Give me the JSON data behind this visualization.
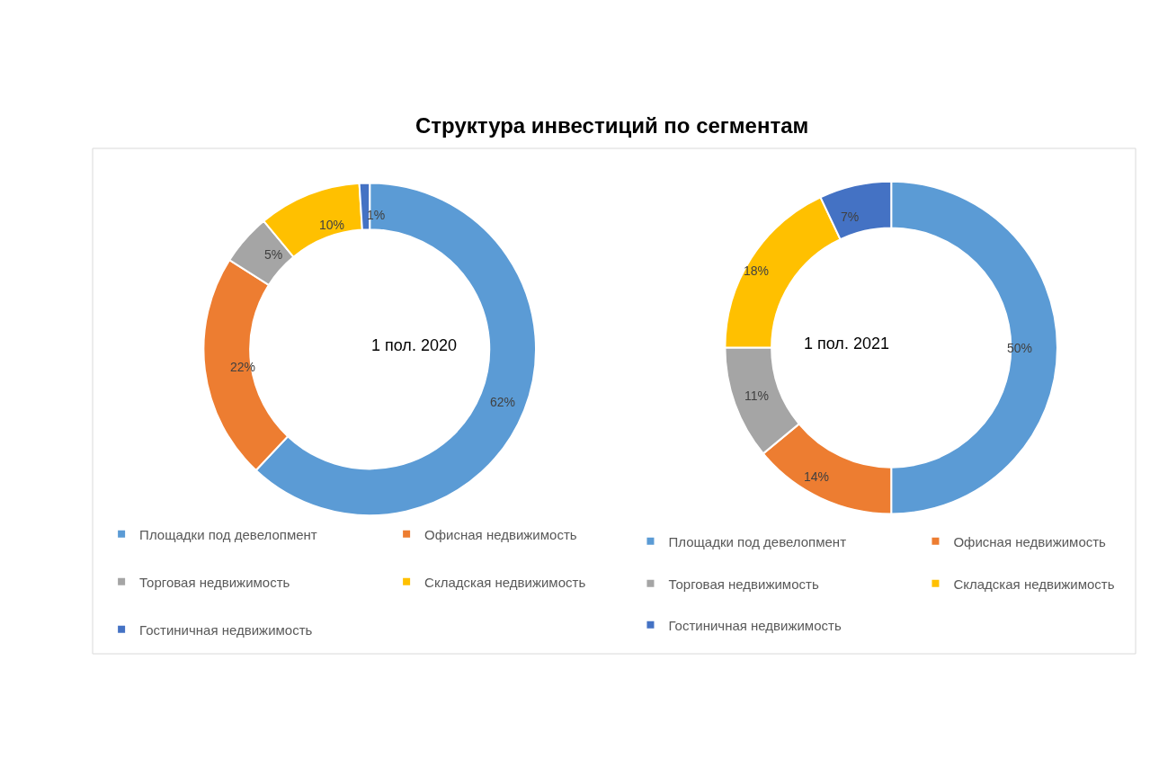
{
  "chart_data": [
    {
      "type": "donut",
      "title": "Структура инвестиций по сегментам",
      "subtitle": "1 пол. 2020",
      "categories": [
        "Площадки под девелопмент",
        "Офисная недвижимость",
        "Торговая недвижимость",
        "Складская недвижимость",
        "Гостиничная недвижимость"
      ],
      "values": [
        62,
        22,
        5,
        10,
        1
      ],
      "value_labels": [
        "62%",
        "22%",
        "5%",
        "10%",
        "1%"
      ],
      "colors": [
        "#5b9bd5",
        "#ed7d31",
        "#a5a5a5",
        "#ffc000",
        "#4472c4"
      ],
      "legend": "bottom"
    },
    {
      "type": "donut",
      "subtitle": "1 пол. 2021",
      "categories": [
        "Площадки под девелопмент",
        "Офисная недвижимость",
        "Торговая недвижимость",
        "Складская недвижимость",
        "Гостиничная недвижимость"
      ],
      "values": [
        50,
        14,
        11,
        18,
        7
      ],
      "value_labels": [
        "50%",
        "14%",
        "11%",
        "18%",
        "7%"
      ],
      "colors": [
        "#5b9bd5",
        "#ed7d31",
        "#a5a5a5",
        "#ffc000",
        "#4472c4"
      ],
      "legend": "bottom"
    }
  ]
}
